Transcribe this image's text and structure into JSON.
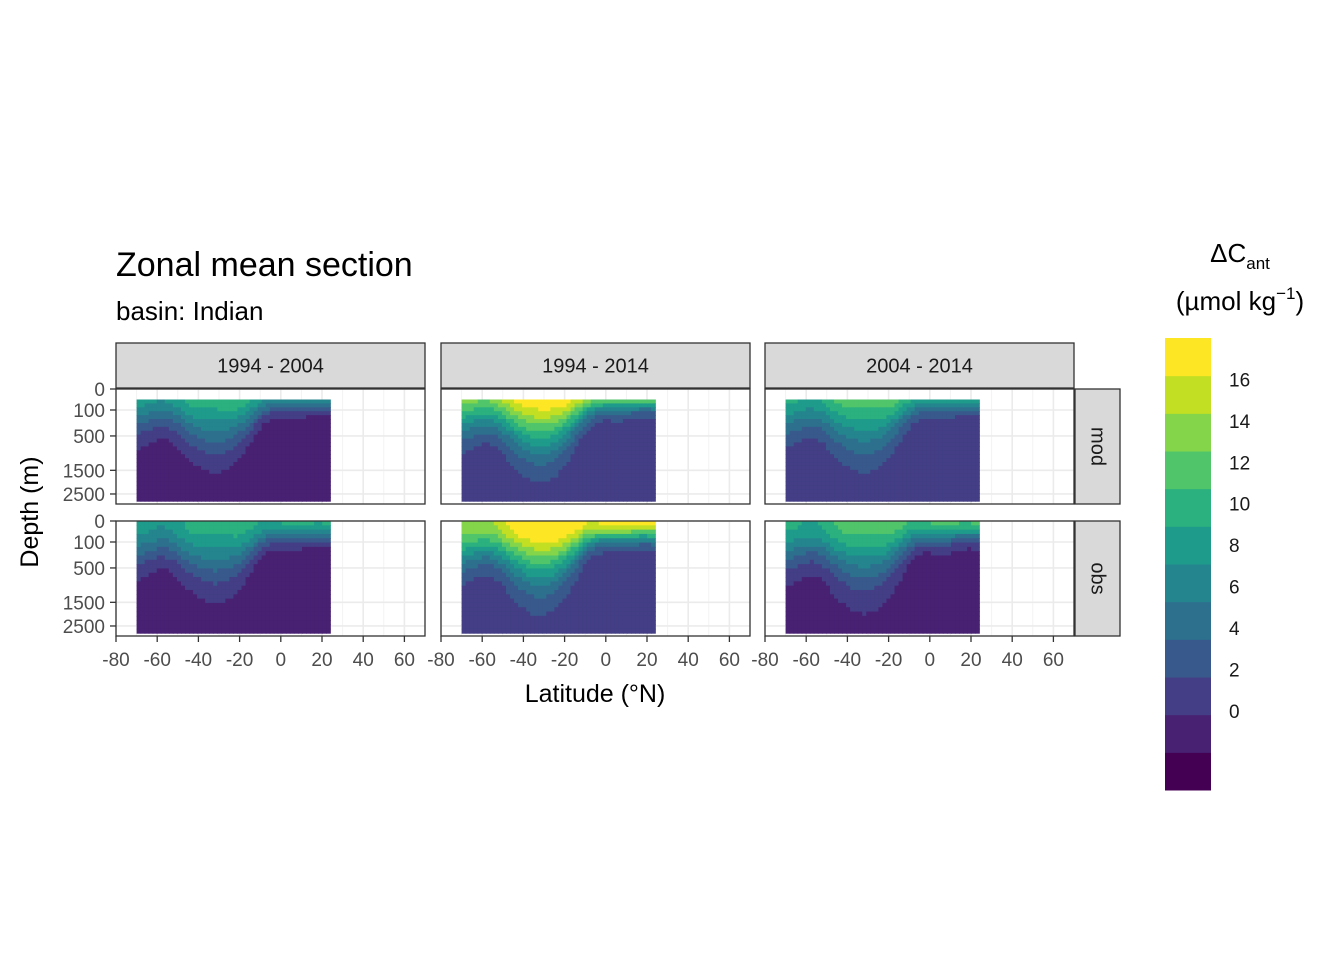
{
  "chart_data": {
    "type": "heatmap",
    "title": "Zonal mean section",
    "subtitle": "basin: Indian",
    "xlabel": "Latitude (°N)",
    "ylabel": "Depth (m)",
    "xlim": [
      -80,
      70
    ],
    "x_ticks": [
      "-80",
      "-60",
      "-40",
      "-20",
      "0",
      "20",
      "40",
      "60"
    ],
    "y_ticks": [
      "0",
      "100",
      "500",
      "1500",
      "2500"
    ],
    "y_tick_values": [
      0,
      100,
      500,
      1500,
      2500
    ],
    "ylim": [
      0,
      3000
    ],
    "y_reversed": true,
    "y_scale": "sqrt",
    "grid": true,
    "columns": [
      "1994 - 2004",
      "1994 - 2014",
      "2004 - 2014"
    ],
    "rows": [
      "mod",
      "obs"
    ],
    "data_lat_range": [
      -70,
      24
    ],
    "legend": {
      "title_main": "ΔC",
      "title_sub": "ant",
      "unit_pre": "(µmol kg",
      "unit_sup": "−1",
      "unit_post": ")",
      "labels": [
        "0",
        "2",
        "4",
        "6",
        "8",
        "10",
        "12",
        "14",
        "16"
      ],
      "breaks": [
        -2,
        0,
        2,
        4,
        6,
        8,
        10,
        12,
        14,
        16,
        18
      ],
      "colors": [
        "#440154",
        "#482173",
        "#433E85",
        "#38598C",
        "#2D708E",
        "#25858E",
        "#1E9B8A",
        "#2BB07F",
        "#51C56A",
        "#85D54A",
        "#C2DF23",
        "#FDE725"
      ],
      "placement": "right"
    },
    "panels": [
      {
        "column": "1994 - 2004",
        "row": "mod",
        "surface_max": 12,
        "subtropical_gyre_max": 6,
        "deep_min": -1.5
      },
      {
        "column": "1994 - 2014",
        "row": "mod",
        "surface_max": 20,
        "subtropical_gyre_max": 16,
        "deep_min": 0.5
      },
      {
        "column": "2004 - 2014",
        "row": "mod",
        "surface_max": 14,
        "subtropical_gyre_max": 8,
        "deep_min": 0.5
      },
      {
        "column": "1994 - 2004",
        "row": "obs",
        "surface_max": 11,
        "subtropical_gyre_max": 5,
        "deep_min": -1.5
      },
      {
        "column": "1994 - 2014",
        "row": "obs",
        "surface_max": 20,
        "subtropical_gyre_max": 16,
        "deep_min": 0.5
      },
      {
        "column": "2004 - 2014",
        "row": "obs",
        "surface_max": 13,
        "subtropical_gyre_max": 7,
        "deep_min": -1.0
      }
    ]
  }
}
